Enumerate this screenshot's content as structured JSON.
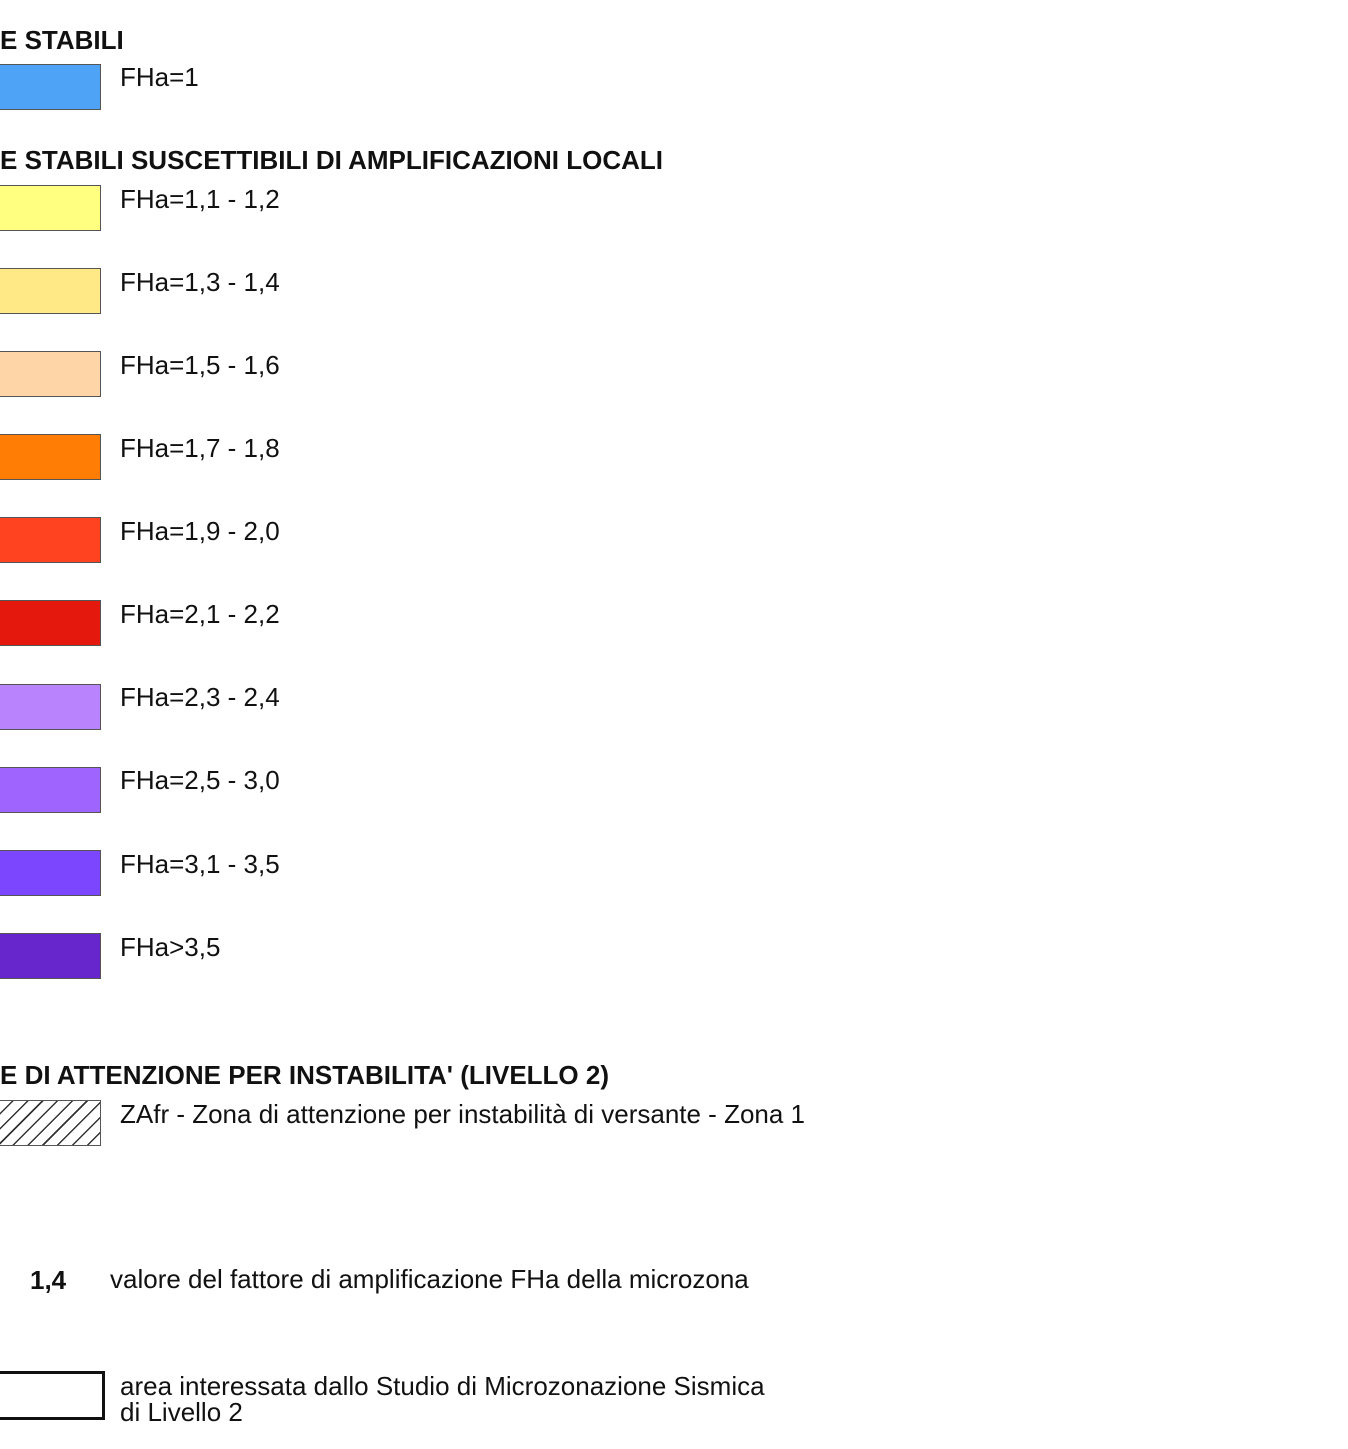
{
  "legend": {
    "stable": {
      "heading": "E STABILI",
      "items": [
        {
          "label": "FHa=1",
          "color": "#4ea3f7"
        }
      ]
    },
    "amplification": {
      "heading": "E STABILI SUSCETTIBILI DI AMPLIFICAZIONI LOCALI",
      "items": [
        {
          "label": "FHa=1,1 - 1,2",
          "color": "#ffff80"
        },
        {
          "label": "FHa=1,3 - 1,4",
          "color": "#ffe987"
        },
        {
          "label": "FHa=1,5 - 1,6",
          "color": "#fed5a6"
        },
        {
          "label": "FHa=1,7 - 1,8",
          "color": "#ff7d05"
        },
        {
          "label": "FHa=1,9 - 2,0",
          "color": "#ff4321"
        },
        {
          "label": "FHa=2,1 - 2,2",
          "color": "#e5180e"
        },
        {
          "label": "FHa=2,3 - 2,4",
          "color": "#b983fd"
        },
        {
          "label": "FHa=2,5 - 3,0",
          "color": "#9f64fe"
        },
        {
          "label": "FHa=3,1 - 3,5",
          "color": "#7c46ff"
        },
        {
          "label": "FHa>3,5",
          "color": "#6626cb"
        }
      ]
    },
    "attention": {
      "heading": "E DI ATTENZIONE PER INSTABILITA' (LIVELLO 2)",
      "items": [
        {
          "label": "ZAfr - Zona di attenzione per instabilità di versante - Zona 1",
          "pattern": "diagonal-hatch"
        }
      ]
    },
    "value_note": {
      "sample": "1,4",
      "description": "valore del fattore di amplificazione FHa della microzona"
    },
    "study_area": {
      "line1": "area interessata dallo Studio di Microzonazione Sismica",
      "line2": "di Livello 2"
    }
  }
}
